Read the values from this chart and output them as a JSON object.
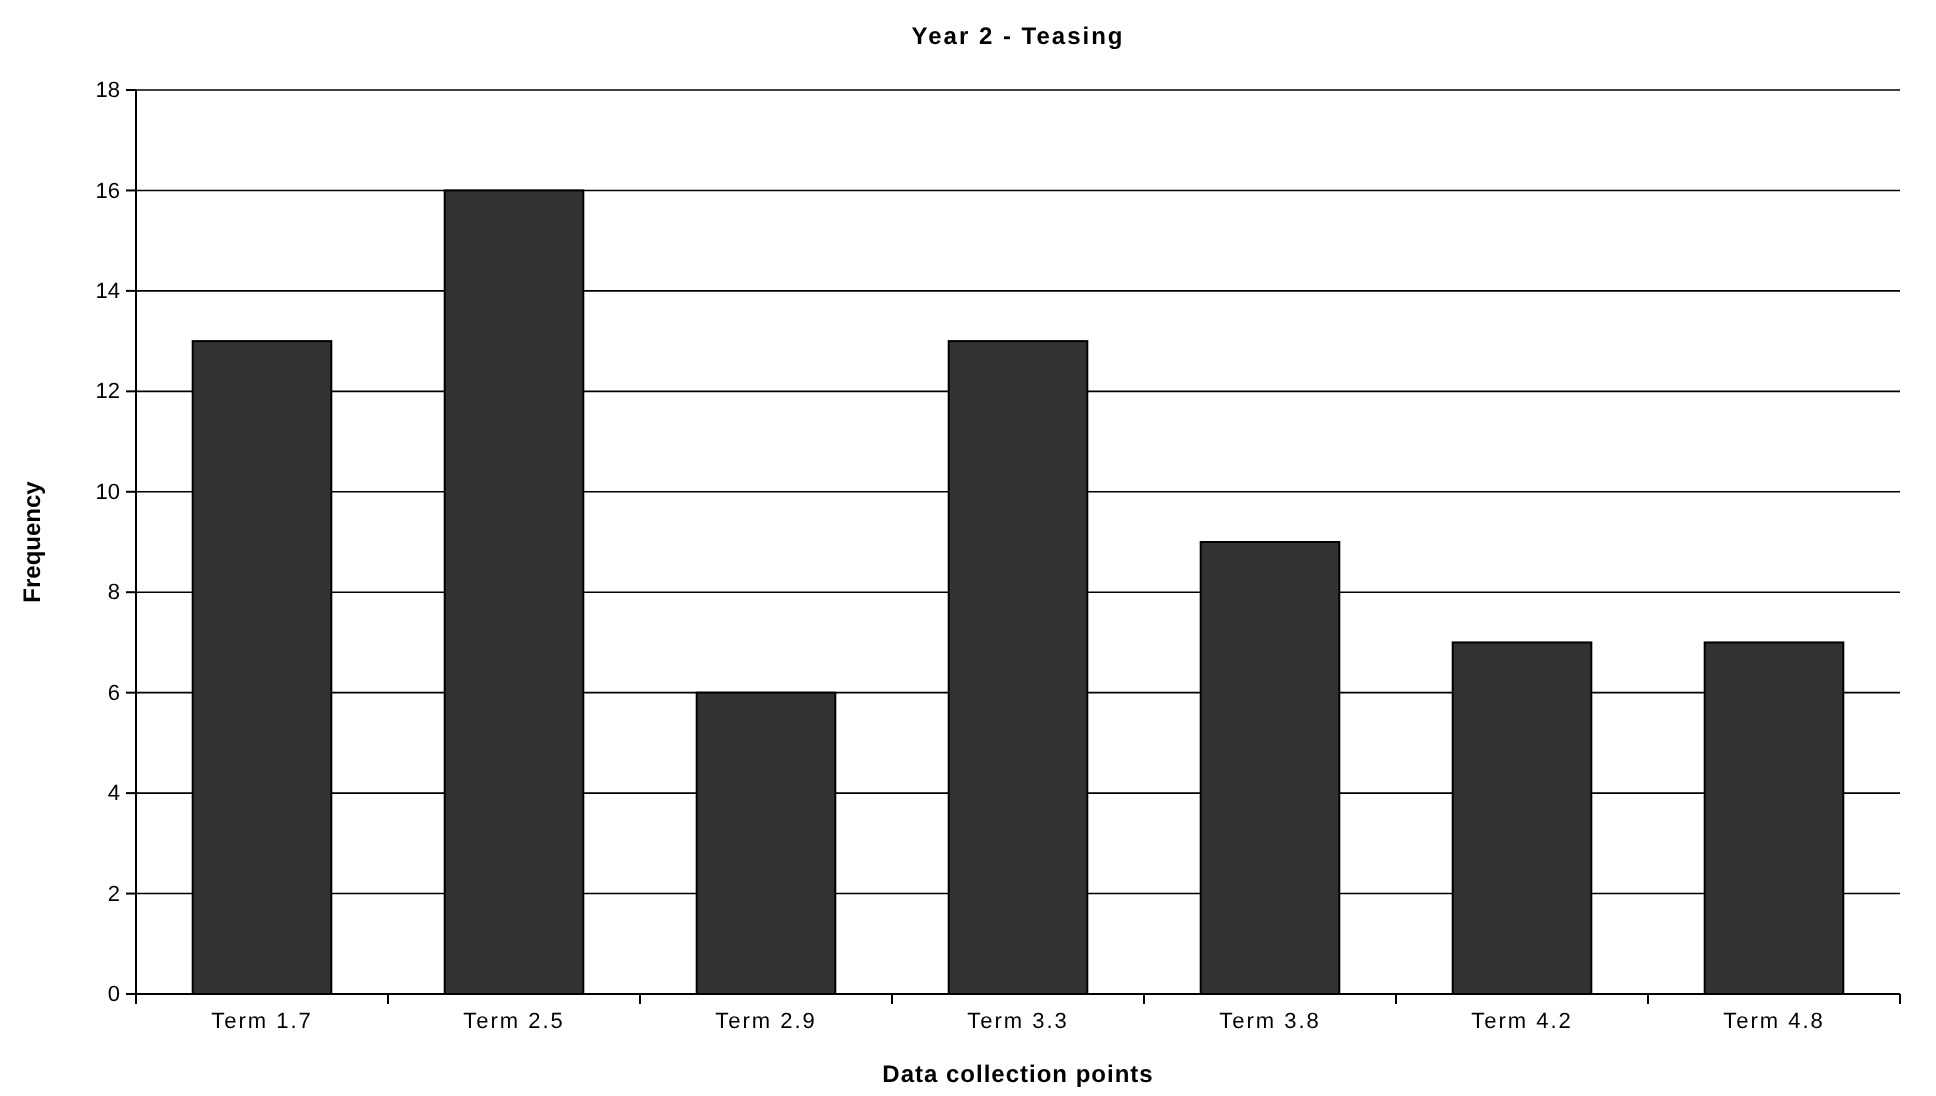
{
  "chart_data": {
    "type": "bar",
    "title": "Year 2 - Teasing",
    "xlabel": "Data collection points",
    "ylabel": "Frequency",
    "categories": [
      "Term 1.7",
      "Term 2.5",
      "Term 2.9",
      "Term 3.3",
      "Term 3.8",
      "Term 4.2",
      "Term 4.8"
    ],
    "values": [
      13,
      16,
      6,
      13,
      9,
      7,
      7
    ],
    "color": "#333333",
    "ylim": [
      0,
      18
    ],
    "yticks": [
      0,
      2,
      4,
      6,
      8,
      10,
      12,
      14,
      16,
      18
    ],
    "grid": "y"
  }
}
